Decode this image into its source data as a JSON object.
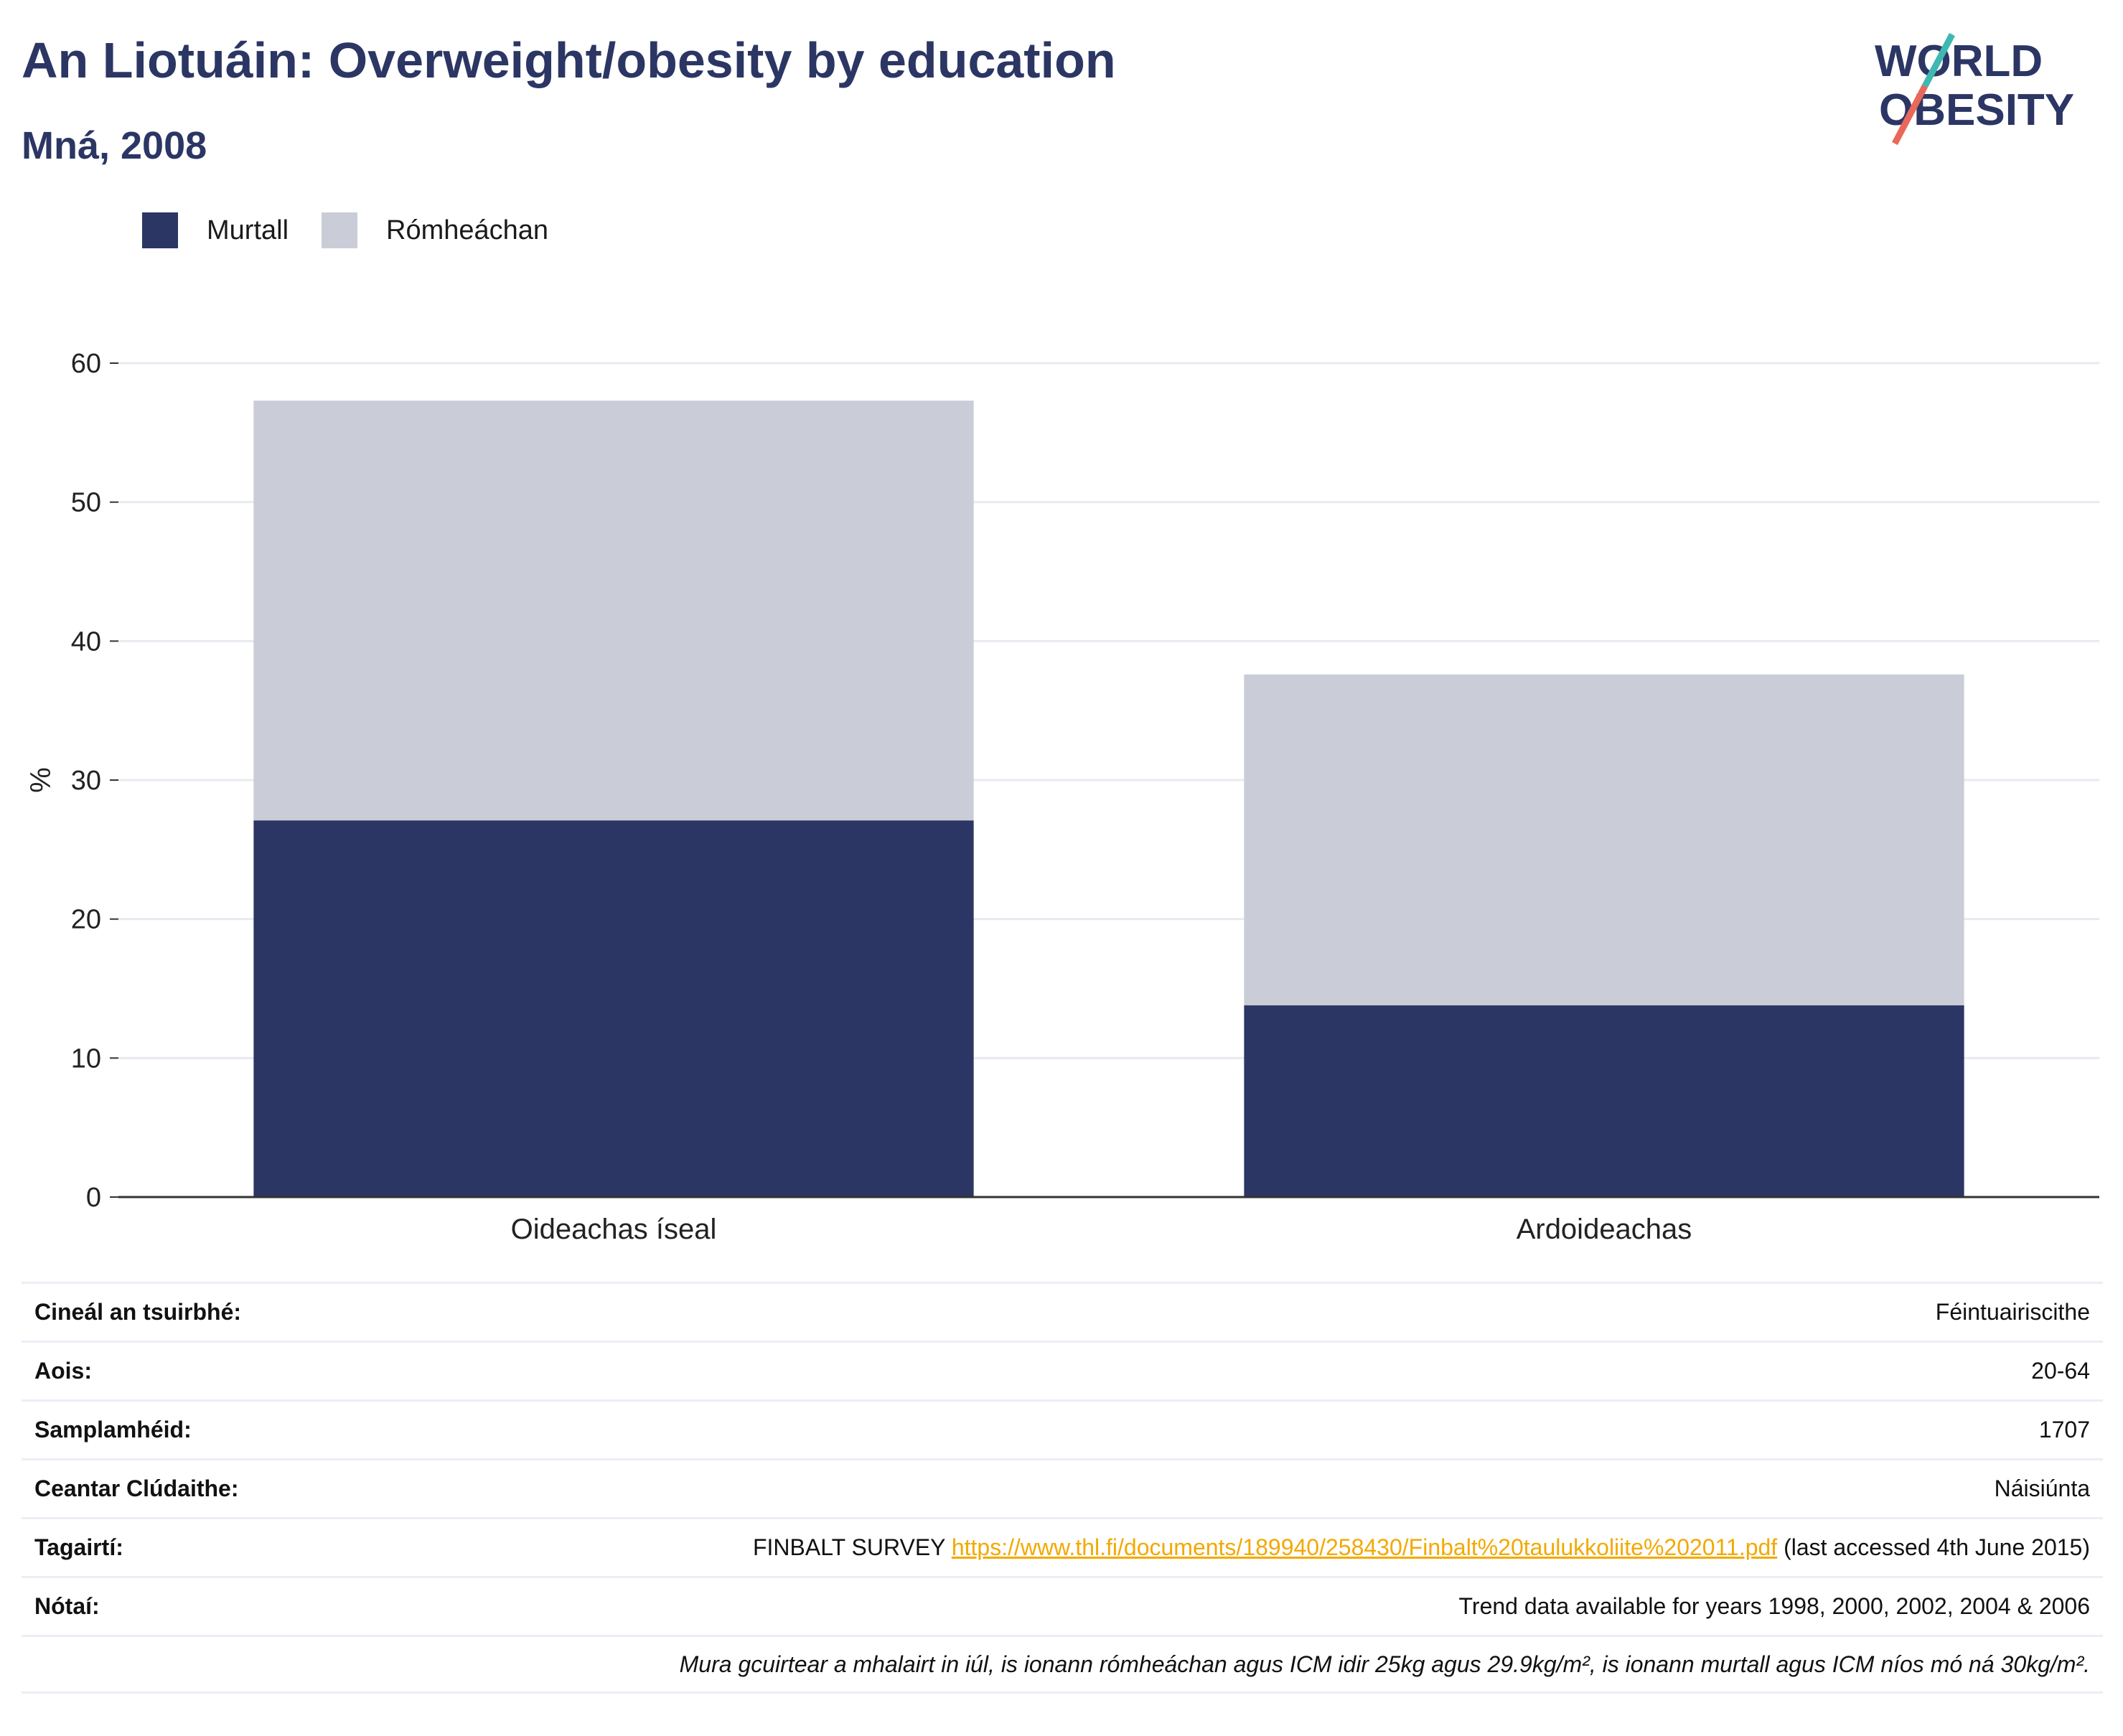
{
  "title": "An Liotuáin: Overweight/obesity by education",
  "subtitle": "Mná, 2008",
  "logo": {
    "line1": "WORLD",
    "line2": "OBESITY",
    "accent_teal": "#3fb8b2",
    "accent_red": "#e8685a"
  },
  "colors": {
    "obese": "#2b3664",
    "overweight": "#caccd7",
    "text_dark": "#2b3664",
    "link": "#f2a900"
  },
  "chart_data": {
    "type": "bar",
    "stacked": true,
    "categories": [
      "Oideachas íseal",
      "Ardoideachas"
    ],
    "series": [
      {
        "name": "Murtall",
        "values": [
          27.1,
          13.8
        ],
        "color": "#2b3664"
      },
      {
        "name": "Rómheáchan",
        "values": [
          30.2,
          23.8
        ],
        "color": "#caccd7"
      }
    ],
    "ylabel": "%",
    "ylim": [
      0,
      60
    ],
    "yticks": [
      0,
      10,
      20,
      30,
      40,
      50,
      60
    ],
    "grid": true,
    "legend": "top-left"
  },
  "info": {
    "survey_type": {
      "label": "Cineál an tsuirbhé:",
      "value": "Féintuairiscithe"
    },
    "age": {
      "label": "Aois:",
      "value": "20-64"
    },
    "sample_size": {
      "label": "Samplamhéid:",
      "value": "1707"
    },
    "area": {
      "label": "Ceantar Clúdaithe:",
      "value": "Náisiúnta"
    },
    "references": {
      "label": "Tagairtí:",
      "prefix": "FINBALT SURVEY",
      "link": "https://www.thl.fi/documents/189940/258430/Finbalt%20taulukkoliite%202011.pdf",
      "suffix": "(last accessed 4th June 2015)"
    },
    "notes": {
      "label": "Nótaí:",
      "value": "Trend data available for years 1998, 2000, 2002, 2004 & 2006"
    },
    "footnote": "Mura gcuirtear a mhalairt in iúl, is ionann rómheáchan agus ICM idir 25kg agus 29.9kg/m², is ionann murtall agus ICM níos mó ná 30kg/m²."
  }
}
